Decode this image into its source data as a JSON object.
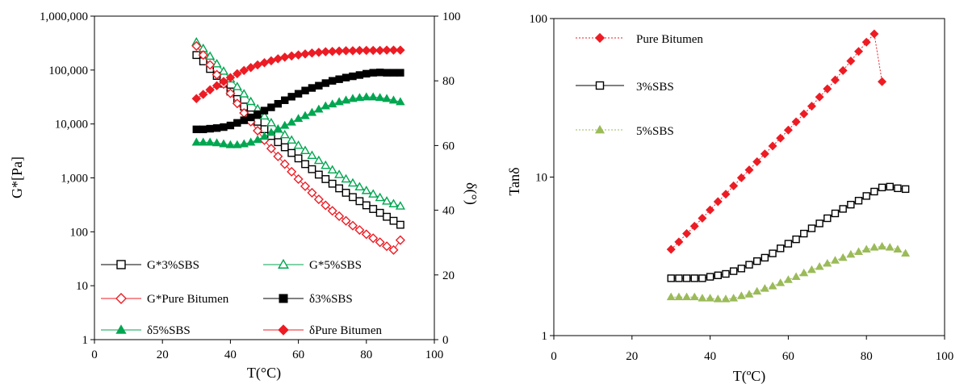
{
  "chart_data": [
    {
      "type": "scatter",
      "xlabel": "T(°C)",
      "ylabel": "G*[Pa]",
      "y2label": "δ(°)",
      "xlim": [
        0,
        100
      ],
      "xticks": [
        "0",
        "20",
        "40",
        "60",
        "80",
        "100"
      ],
      "ylim": [
        1,
        1000000
      ],
      "yscale": "log",
      "yticks": [
        "1",
        "10",
        "100",
        "1,000",
        "10,000",
        "100,000",
        "1,000,000"
      ],
      "y2lim": [
        0,
        100
      ],
      "y2ticks": [
        "0",
        "20",
        "40",
        "60",
        "80",
        "100"
      ],
      "legend_position": "bottom",
      "colors": {
        "black": "#000000",
        "green": "#00a651",
        "red": "#ed1c24"
      },
      "series": [
        {
          "name": "G*3%SBS",
          "axis": "left",
          "marker": "square-open",
          "color": "#000000",
          "x": [
            30,
            32,
            34,
            36,
            38,
            40,
            42,
            44,
            46,
            48,
            50,
            52,
            54,
            56,
            58,
            60,
            62,
            64,
            66,
            68,
            70,
            72,
            74,
            76,
            78,
            80,
            82,
            84,
            86,
            88,
            90
          ],
          "y": [
            190000,
            145000,
            105000,
            78000,
            56000,
            40000,
            29000,
            21000,
            15000,
            11000,
            8000,
            6000,
            4600,
            3700,
            2900,
            2300,
            1800,
            1450,
            1150,
            950,
            780,
            640,
            530,
            440,
            370,
            310,
            265,
            225,
            190,
            160,
            135
          ]
        },
        {
          "name": "G*5%SBS",
          "axis": "left",
          "marker": "triangle-open",
          "color": "#00a651",
          "x": [
            30,
            32,
            34,
            36,
            38,
            40,
            42,
            44,
            46,
            48,
            50,
            52,
            54,
            56,
            58,
            60,
            62,
            64,
            66,
            68,
            70,
            72,
            74,
            76,
            78,
            80,
            82,
            84,
            86,
            88,
            90
          ],
          "y": [
            330000,
            250000,
            180000,
            130000,
            95000,
            68000,
            49000,
            36000,
            26000,
            19000,
            14000,
            10500,
            8000,
            6300,
            5000,
            4000,
            3200,
            2600,
            2100,
            1700,
            1400,
            1150,
            950,
            800,
            680,
            580,
            500,
            430,
            370,
            330,
            300
          ]
        },
        {
          "name": "G*Pure Bitumen",
          "axis": "left",
          "marker": "diamond-open",
          "color": "#ed1c24",
          "x": [
            30,
            32,
            34,
            36,
            38,
            40,
            42,
            44,
            46,
            48,
            50,
            52,
            54,
            56,
            58,
            60,
            62,
            64,
            66,
            68,
            70,
            72,
            74,
            76,
            78,
            80,
            82,
            84,
            86,
            88,
            90
          ],
          "y": [
            280000,
            190000,
            125000,
            82000,
            55000,
            37000,
            24000,
            16000,
            11000,
            7500,
            5000,
            3500,
            2500,
            1800,
            1300,
            950,
            700,
            530,
            400,
            310,
            245,
            195,
            160,
            130,
            108,
            90,
            76,
            64,
            54,
            46,
            70
          ]
        },
        {
          "name": "δ3%SBS",
          "axis": "right",
          "marker": "square-filled",
          "color": "#000000",
          "x": [
            30,
            32,
            34,
            36,
            38,
            40,
            42,
            44,
            46,
            48,
            50,
            52,
            54,
            56,
            58,
            60,
            62,
            64,
            66,
            68,
            70,
            72,
            74,
            76,
            78,
            80,
            82,
            84,
            86,
            88,
            90
          ],
          "y": [
            65,
            65,
            65.2,
            65.4,
            65.7,
            66.2,
            67,
            67.8,
            68.7,
            69.7,
            70.8,
            71.8,
            72.9,
            74,
            75.1,
            76,
            77,
            77.8,
            78.5,
            79.3,
            80,
            80.5,
            81,
            81.4,
            81.8,
            82.2,
            82.5,
            82.6,
            82.5,
            82.5,
            82.5
          ]
        },
        {
          "name": "δ5%SBS",
          "axis": "right",
          "marker": "triangle-filled",
          "color": "#00a651",
          "x": [
            30,
            32,
            34,
            36,
            38,
            40,
            42,
            44,
            46,
            48,
            50,
            52,
            54,
            56,
            58,
            60,
            62,
            64,
            66,
            68,
            70,
            72,
            74,
            76,
            78,
            80,
            82,
            84,
            86,
            88,
            90
          ],
          "y": [
            61,
            61,
            61,
            60.8,
            60.5,
            60.2,
            60.2,
            60.5,
            61,
            61.8,
            62.8,
            64,
            65,
            66.2,
            67.2,
            68.3,
            69.2,
            70.2,
            71.2,
            72.2,
            72.8,
            73.5,
            74,
            74.5,
            74.8,
            75,
            75,
            74.8,
            74.5,
            74,
            73.5
          ]
        },
        {
          "name": "δPure Bitumen",
          "axis": "right",
          "marker": "diamond-filled",
          "color": "#ed1c24",
          "x": [
            30,
            32,
            34,
            36,
            38,
            40,
            42,
            44,
            46,
            48,
            50,
            52,
            54,
            56,
            58,
            60,
            62,
            64,
            66,
            68,
            70,
            72,
            74,
            76,
            78,
            80,
            82,
            84,
            86,
            88,
            90
          ],
          "y": [
            74.5,
            75.8,
            77.2,
            78.5,
            79.8,
            81,
            82.2,
            83.2,
            84.1,
            84.9,
            85.6,
            86.2,
            86.8,
            87.3,
            87.7,
            88,
            88.3,
            88.6,
            88.8,
            89,
            89.1,
            89.2,
            89.3,
            89.3,
            89.4,
            89.4,
            89.4,
            89.4,
            89.5,
            89.5,
            89.5
          ]
        }
      ]
    },
    {
      "type": "line",
      "xlabel": "T(ºC)",
      "ylabel": "Tanδ",
      "xlim": [
        0,
        100
      ],
      "xticks": [
        "0",
        "20",
        "40",
        "60",
        "80",
        "100"
      ],
      "ylim": [
        1,
        100
      ],
      "yscale": "log",
      "yticks": [
        "1",
        "10",
        "100"
      ],
      "legend_position": "top-left",
      "colors": {
        "red": "#ed1c24",
        "black": "#000000",
        "green": "#9bbb59"
      },
      "series": [
        {
          "name": "Pure Bitumen",
          "marker": "diamond-filled",
          "color": "#ed1c24",
          "line": "dotted",
          "x": [
            30,
            32,
            34,
            36,
            38,
            40,
            42,
            44,
            46,
            48,
            50,
            52,
            54,
            56,
            58,
            60,
            62,
            64,
            66,
            68,
            70,
            72,
            74,
            76,
            78,
            80,
            82,
            84
          ],
          "y": [
            3.5,
            3.9,
            4.4,
            4.9,
            5.5,
            6.2,
            7,
            7.8,
            8.8,
            9.9,
            11.1,
            12.5,
            14,
            15.7,
            17.6,
            19.8,
            22.3,
            25,
            28,
            32,
            36,
            41,
            47,
            54,
            62,
            71,
            80,
            40
          ]
        },
        {
          "name": "3%SBS",
          "marker": "square-open",
          "color": "#000000",
          "line": "solid",
          "x": [
            30,
            32,
            34,
            36,
            38,
            40,
            42,
            44,
            46,
            48,
            50,
            52,
            54,
            56,
            58,
            60,
            62,
            64,
            66,
            68,
            70,
            72,
            74,
            76,
            78,
            80,
            82,
            84,
            86,
            88,
            90
          ],
          "y": [
            2.3,
            2.3,
            2.3,
            2.3,
            2.3,
            2.35,
            2.4,
            2.45,
            2.55,
            2.65,
            2.8,
            2.95,
            3.1,
            3.3,
            3.55,
            3.8,
            4.05,
            4.4,
            4.75,
            5.1,
            5.5,
            5.9,
            6.3,
            6.7,
            7.1,
            7.6,
            8.1,
            8.6,
            8.7,
            8.5,
            8.4
          ]
        },
        {
          "name": "5%SBS",
          "marker": "triangle-filled",
          "color": "#9bbb59",
          "line": "dotted",
          "x": [
            30,
            32,
            34,
            36,
            38,
            40,
            42,
            44,
            46,
            48,
            50,
            52,
            54,
            56,
            58,
            60,
            62,
            64,
            66,
            68,
            70,
            72,
            74,
            76,
            78,
            80,
            82,
            84,
            86,
            88,
            90
          ],
          "y": [
            1.75,
            1.75,
            1.75,
            1.75,
            1.72,
            1.72,
            1.7,
            1.7,
            1.72,
            1.78,
            1.82,
            1.9,
            1.98,
            2.05,
            2.15,
            2.25,
            2.35,
            2.48,
            2.6,
            2.72,
            2.85,
            2.98,
            3.1,
            3.25,
            3.38,
            3.5,
            3.6,
            3.65,
            3.6,
            3.5,
            3.3
          ]
        }
      ]
    }
  ]
}
